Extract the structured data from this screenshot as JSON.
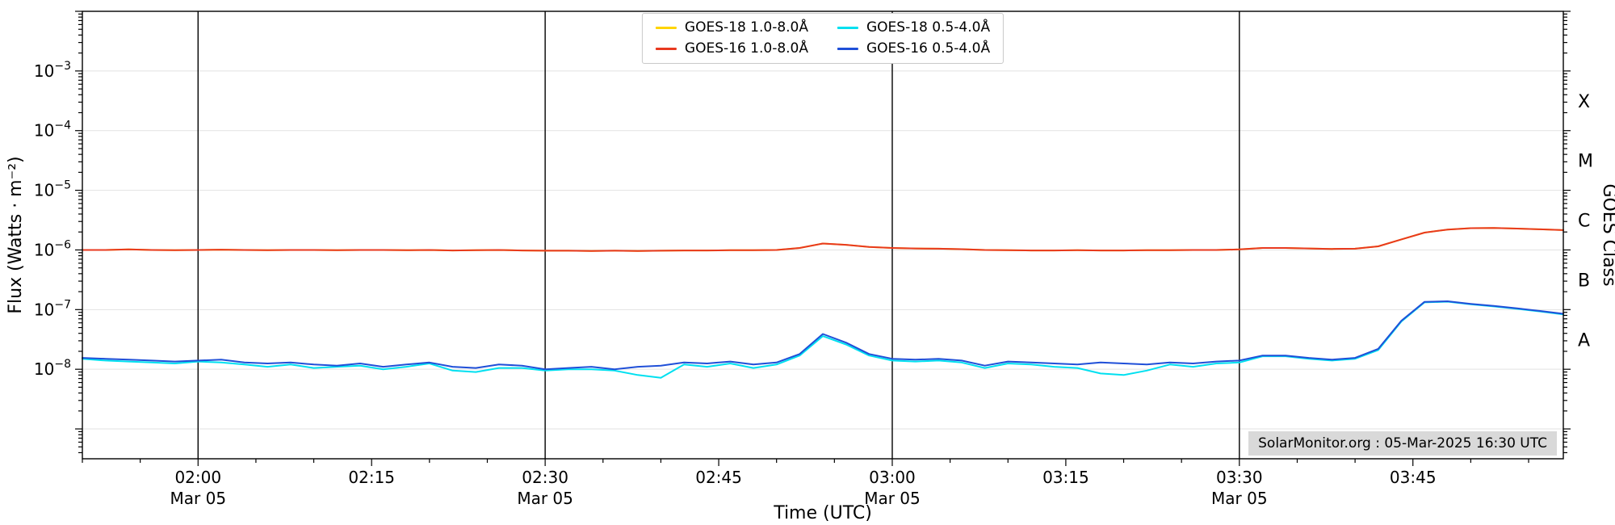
{
  "annotation": {
    "text": "SolarMonitor.org : 05-Mar-2025 16:30 UTC"
  },
  "chart_data": {
    "type": "line",
    "title": "",
    "xlabel": "Time (UTC)",
    "ylabel_left": "Flux (Watts · m⁻²)",
    "ylabel_right": "GOES Class",
    "y_scale": "log10",
    "y_range": [
      3.16e-10,
      0.01
    ],
    "x_range_minutes": [
      110,
      238
    ],
    "x_axis_date": "Mar 05",
    "grid": "horizontal-decades",
    "vlines_minutes": [
      120,
      150,
      180,
      210
    ],
    "x_ticks": [
      {
        "minutes": 120,
        "label": "02:00",
        "sublabel": "Mar 05"
      },
      {
        "minutes": 135,
        "label": "02:15",
        "sublabel": ""
      },
      {
        "minutes": 150,
        "label": "02:30",
        "sublabel": "Mar 05"
      },
      {
        "minutes": 165,
        "label": "02:45",
        "sublabel": ""
      },
      {
        "minutes": 180,
        "label": "03:00",
        "sublabel": "Mar 05"
      },
      {
        "minutes": 195,
        "label": "03:15",
        "sublabel": ""
      },
      {
        "minutes": 210,
        "label": "03:30",
        "sublabel": "Mar 05"
      },
      {
        "minutes": 225,
        "label": "03:45",
        "sublabel": ""
      }
    ],
    "y_ticks": [
      {
        "exponent": -3,
        "label": "10⁻³"
      },
      {
        "exponent": -4,
        "label": "10⁻⁴"
      },
      {
        "exponent": -5,
        "label": "10⁻⁵"
      },
      {
        "exponent": -6,
        "label": "10⁻⁶"
      },
      {
        "exponent": -7,
        "label": "10⁻⁷"
      },
      {
        "exponent": -8,
        "label": "10⁻⁸"
      }
    ],
    "goes_classes": [
      {
        "label": "X",
        "flux": 0.000316
      },
      {
        "label": "M",
        "flux": 3.16e-05
      },
      {
        "label": "C",
        "flux": 3.16e-06
      },
      {
        "label": "B",
        "flux": 3.16e-07
      },
      {
        "label": "A",
        "flux": 3.16e-08
      }
    ],
    "legend": {
      "position": "top-center",
      "entries": [
        {
          "label": "GOES-18 1.0-8.0Å",
          "color": "#ffd400"
        },
        {
          "label": "GOES-18 0.5-4.0Å",
          "color": "#00e0f0"
        },
        {
          "label": "GOES-16 1.0-8.0Å",
          "color": "#e8391f"
        },
        {
          "label": "GOES-16 0.5-4.0Å",
          "color": "#1f4fd8"
        }
      ]
    },
    "x_minutes": [
      110,
      112,
      114,
      116,
      118,
      120,
      122,
      124,
      126,
      128,
      130,
      132,
      134,
      136,
      138,
      140,
      142,
      144,
      146,
      148,
      150,
      152,
      154,
      156,
      158,
      160,
      162,
      164,
      166,
      168,
      170,
      172,
      174,
      176,
      178,
      180,
      182,
      184,
      186,
      188,
      190,
      192,
      194,
      196,
      198,
      200,
      202,
      204,
      206,
      208,
      210,
      212,
      214,
      216,
      218,
      220,
      222,
      224,
      226,
      228,
      230,
      232,
      234,
      236,
      238
    ],
    "series": [
      {
        "name": "GOES-18 1.0-8.0Å",
        "color": "#ffd400",
        "flux": [
          1e-06,
          1e-06,
          1.02e-06,
          1e-06,
          9.9e-07,
          1e-06,
          1.01e-06,
          1e-06,
          9.9e-07,
          1e-06,
          1e-06,
          9.9e-07,
          1e-06,
          1e-06,
          9.9e-07,
          1e-06,
          9.8e-07,
          9.9e-07,
          1e-06,
          9.8e-07,
          9.7e-07,
          9.7e-07,
          9.6e-07,
          9.7e-07,
          9.6e-07,
          9.7e-07,
          9.8e-07,
          9.8e-07,
          9.9e-07,
          9.9e-07,
          1e-06,
          1.08e-06,
          1.28e-06,
          1.22e-06,
          1.12e-06,
          1.08e-06,
          1.06e-06,
          1.05e-06,
          1.03e-06,
          1e-06,
          9.9e-07,
          9.8e-07,
          9.8e-07,
          9.9e-07,
          9.8e-07,
          9.8e-07,
          9.9e-07,
          9.9e-07,
          1e-06,
          1e-06,
          1.02e-06,
          1.08e-06,
          1.08e-06,
          1.06e-06,
          1.04e-06,
          1.05e-06,
          1.15e-06,
          1.5e-06,
          1.95e-06,
          2.2e-06,
          2.32e-06,
          2.33e-06,
          2.28e-06,
          2.22e-06,
          2.15e-06
        ]
      },
      {
        "name": "GOES-16 1.0-8.0Å",
        "color": "#e8391f",
        "flux": [
          1e-06,
          1e-06,
          1.02e-06,
          1e-06,
          9.9e-07,
          1e-06,
          1.01e-06,
          1e-06,
          9.9e-07,
          1e-06,
          1e-06,
          9.9e-07,
          1e-06,
          1e-06,
          9.9e-07,
          1e-06,
          9.8e-07,
          9.9e-07,
          1e-06,
          9.8e-07,
          9.7e-07,
          9.7e-07,
          9.6e-07,
          9.7e-07,
          9.6e-07,
          9.7e-07,
          9.8e-07,
          9.8e-07,
          9.9e-07,
          9.9e-07,
          1e-06,
          1.08e-06,
          1.28e-06,
          1.22e-06,
          1.12e-06,
          1.08e-06,
          1.06e-06,
          1.05e-06,
          1.03e-06,
          1e-06,
          9.9e-07,
          9.8e-07,
          9.8e-07,
          9.9e-07,
          9.8e-07,
          9.8e-07,
          9.9e-07,
          9.9e-07,
          1e-06,
          1e-06,
          1.02e-06,
          1.08e-06,
          1.08e-06,
          1.06e-06,
          1.04e-06,
          1.05e-06,
          1.15e-06,
          1.5e-06,
          1.95e-06,
          2.2e-06,
          2.32e-06,
          2.33e-06,
          2.28e-06,
          2.22e-06,
          2.15e-06
        ]
      },
      {
        "name": "GOES-18 0.5-4.0Å",
        "color": "#00e0f0",
        "flux": [
          1.5e-08,
          1.4e-08,
          1.35e-08,
          1.3e-08,
          1.25e-08,
          1.35e-08,
          1.3e-08,
          1.2e-08,
          1.1e-08,
          1.2e-08,
          1.05e-08,
          1.1e-08,
          1.15e-08,
          1e-08,
          1.1e-08,
          1.25e-08,
          9.5e-09,
          9e-09,
          1.05e-08,
          1.05e-08,
          9.5e-09,
          1e-08,
          1e-08,
          9.5e-09,
          8e-09,
          7.2e-09,
          1.2e-08,
          1.1e-08,
          1.25e-08,
          1.05e-08,
          1.2e-08,
          1.7e-08,
          3.6e-08,
          2.6e-08,
          1.7e-08,
          1.4e-08,
          1.35e-08,
          1.4e-08,
          1.3e-08,
          1.05e-08,
          1.25e-08,
          1.2e-08,
          1.1e-08,
          1.05e-08,
          8.5e-09,
          8e-09,
          9.5e-09,
          1.2e-08,
          1.1e-08,
          1.25e-08,
          1.3e-08,
          1.65e-08,
          1.65e-08,
          1.5e-08,
          1.4e-08,
          1.5e-08,
          2.1e-08,
          6.3e-08,
          1.32e-07,
          1.36e-07,
          1.23e-07,
          1.13e-07,
          1.03e-07,
          9.3e-08,
          8.3e-08
        ]
      },
      {
        "name": "GOES-16 0.5-4.0Å",
        "color": "#1f4fd8",
        "flux": [
          1.55e-08,
          1.5e-08,
          1.45e-08,
          1.4e-08,
          1.35e-08,
          1.4e-08,
          1.45e-08,
          1.3e-08,
          1.25e-08,
          1.3e-08,
          1.2e-08,
          1.15e-08,
          1.25e-08,
          1.1e-08,
          1.2e-08,
          1.3e-08,
          1.1e-08,
          1.05e-08,
          1.2e-08,
          1.15e-08,
          1e-08,
          1.05e-08,
          1.1e-08,
          1e-08,
          1.1e-08,
          1.15e-08,
          1.3e-08,
          1.25e-08,
          1.35e-08,
          1.2e-08,
          1.3e-08,
          1.8e-08,
          3.9e-08,
          2.8e-08,
          1.8e-08,
          1.5e-08,
          1.45e-08,
          1.5e-08,
          1.4e-08,
          1.15e-08,
          1.35e-08,
          1.3e-08,
          1.25e-08,
          1.2e-08,
          1.3e-08,
          1.25e-08,
          1.2e-08,
          1.3e-08,
          1.25e-08,
          1.35e-08,
          1.4e-08,
          1.7e-08,
          1.7e-08,
          1.55e-08,
          1.45e-08,
          1.55e-08,
          2.2e-08,
          6.5e-08,
          1.35e-07,
          1.38e-07,
          1.25e-07,
          1.15e-07,
          1.05e-07,
          9.5e-08,
          8.5e-08
        ]
      }
    ]
  }
}
